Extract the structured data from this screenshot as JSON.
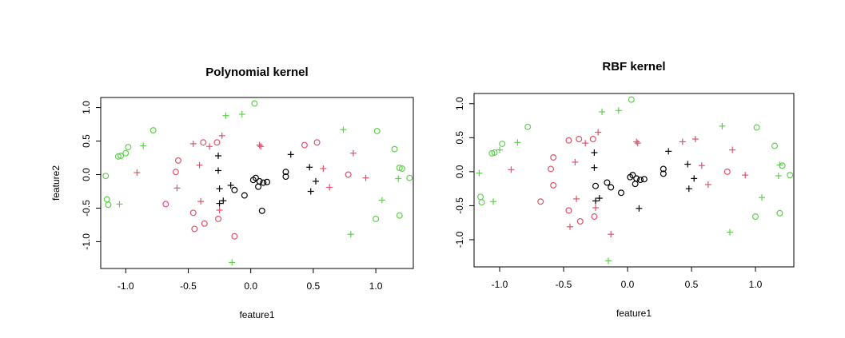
{
  "chart_data": [
    {
      "type": "scatter",
      "title": "Polynomial kernel",
      "xlabel": "feature1",
      "ylabel": "feature2",
      "xlim": [
        -1.2,
        1.3
      ],
      "ylim": [
        -1.4,
        1.15
      ],
      "x_ticks": [
        "-1.0",
        "-0.5",
        "0.0",
        "0.5",
        "1.0"
      ],
      "y_ticks": [
        "-1.0",
        "-0.5",
        "0.0",
        "0.5",
        "1.0"
      ],
      "marker_colors": {
        "black": "#000000",
        "red": "#DF536B",
        "green": "#61D04F"
      },
      "points": [
        {
          "x": 0.04,
          "y": -0.05,
          "color": "black",
          "marker": "o"
        },
        {
          "x": 0.02,
          "y": -0.08,
          "color": "black",
          "marker": "o"
        },
        {
          "x": 0.07,
          "y": -0.1,
          "color": "black",
          "marker": "o"
        },
        {
          "x": 0.1,
          "y": -0.12,
          "color": "black",
          "marker": "o"
        },
        {
          "x": 0.13,
          "y": -0.11,
          "color": "black",
          "marker": "o"
        },
        {
          "x": 0.06,
          "y": -0.18,
          "color": "black",
          "marker": "o"
        },
        {
          "x": -0.05,
          "y": -0.31,
          "color": "black",
          "marker": "o"
        },
        {
          "x": -0.13,
          "y": -0.23,
          "color": "black",
          "marker": "o"
        },
        {
          "x": 0.28,
          "y": 0.04,
          "color": "black",
          "marker": "o"
        },
        {
          "x": 0.28,
          "y": -0.03,
          "color": "black",
          "marker": "o"
        },
        {
          "x": 0.09,
          "y": -0.54,
          "color": "black",
          "marker": "o"
        },
        {
          "x": -0.26,
          "y": 0.28,
          "color": "black",
          "marker": "+"
        },
        {
          "x": -0.26,
          "y": 0.06,
          "color": "black",
          "marker": "+"
        },
        {
          "x": -0.25,
          "y": -0.21,
          "color": "black",
          "marker": "+"
        },
        {
          "x": -0.25,
          "y": -0.43,
          "color": "black",
          "marker": "+"
        },
        {
          "x": -0.22,
          "y": -0.39,
          "color": "black",
          "marker": "+"
        },
        {
          "x": -0.16,
          "y": -0.16,
          "color": "black",
          "marker": "+"
        },
        {
          "x": 0.32,
          "y": 0.3,
          "color": "black",
          "marker": "+"
        },
        {
          "x": 0.47,
          "y": 0.11,
          "color": "black",
          "marker": "+"
        },
        {
          "x": 0.52,
          "y": -0.1,
          "color": "black",
          "marker": "+"
        },
        {
          "x": 0.48,
          "y": -0.25,
          "color": "black",
          "marker": "+"
        },
        {
          "x": -0.68,
          "y": -0.44,
          "color": "red",
          "marker": "o"
        },
        {
          "x": -0.58,
          "y": 0.21,
          "color": "red",
          "marker": "o"
        },
        {
          "x": -0.6,
          "y": 0.04,
          "color": "red",
          "marker": "o"
        },
        {
          "x": -0.38,
          "y": 0.48,
          "color": "red",
          "marker": "o"
        },
        {
          "x": -0.46,
          "y": -0.57,
          "color": "red",
          "marker": "o"
        },
        {
          "x": -0.45,
          "y": -0.81,
          "color": "red",
          "marker": "o"
        },
        {
          "x": -0.37,
          "y": -0.73,
          "color": "red",
          "marker": "o"
        },
        {
          "x": -0.27,
          "y": 0.48,
          "color": "red",
          "marker": "o"
        },
        {
          "x": -0.26,
          "y": -0.66,
          "color": "red",
          "marker": "o"
        },
        {
          "x": -0.13,
          "y": -0.92,
          "color": "red",
          "marker": "o"
        },
        {
          "x": 0.43,
          "y": 0.44,
          "color": "red",
          "marker": "o"
        },
        {
          "x": 0.53,
          "y": 0.48,
          "color": "red",
          "marker": "o"
        },
        {
          "x": 0.78,
          "y": 0.0,
          "color": "red",
          "marker": "o"
        },
        {
          "x": -0.91,
          "y": 0.03,
          "color": "red",
          "marker": "+"
        },
        {
          "x": -0.59,
          "y": -0.2,
          "color": "red",
          "marker": "+"
        },
        {
          "x": -0.46,
          "y": 0.46,
          "color": "red",
          "marker": "+"
        },
        {
          "x": -0.41,
          "y": 0.14,
          "color": "red",
          "marker": "+"
        },
        {
          "x": -0.4,
          "y": -0.4,
          "color": "red",
          "marker": "+"
        },
        {
          "x": -0.33,
          "y": 0.42,
          "color": "red",
          "marker": "+"
        },
        {
          "x": -0.23,
          "y": 0.58,
          "color": "red",
          "marker": "+"
        },
        {
          "x": -0.25,
          "y": -0.53,
          "color": "red",
          "marker": "+"
        },
        {
          "x": 0.07,
          "y": 0.44,
          "color": "red",
          "marker": "+"
        },
        {
          "x": 0.08,
          "y": 0.42,
          "color": "red",
          "marker": "+"
        },
        {
          "x": 0.58,
          "y": 0.09,
          "color": "red",
          "marker": "+"
        },
        {
          "x": 0.63,
          "y": -0.19,
          "color": "red",
          "marker": "+"
        },
        {
          "x": 0.82,
          "y": 0.32,
          "color": "red",
          "marker": "+"
        },
        {
          "x": 0.92,
          "y": -0.05,
          "color": "red",
          "marker": "+"
        },
        {
          "x": -1.16,
          "y": -0.02,
          "color": "green",
          "marker": "o"
        },
        {
          "x": -1.15,
          "y": -0.37,
          "color": "green",
          "marker": "o"
        },
        {
          "x": -1.14,
          "y": -0.45,
          "color": "green",
          "marker": "o"
        },
        {
          "x": -1.06,
          "y": 0.27,
          "color": "green",
          "marker": "o"
        },
        {
          "x": -1.04,
          "y": 0.28,
          "color": "green",
          "marker": "o"
        },
        {
          "x": -1.0,
          "y": 0.32,
          "color": "green",
          "marker": "o"
        },
        {
          "x": -0.98,
          "y": 0.41,
          "color": "green",
          "marker": "o"
        },
        {
          "x": -0.78,
          "y": 0.66,
          "color": "green",
          "marker": "o"
        },
        {
          "x": 0.03,
          "y": 1.06,
          "color": "green",
          "marker": "o"
        },
        {
          "x": 1.01,
          "y": 0.65,
          "color": "green",
          "marker": "o"
        },
        {
          "x": 1.15,
          "y": 0.38,
          "color": "green",
          "marker": "o"
        },
        {
          "x": 1.19,
          "y": 0.1,
          "color": "green",
          "marker": "o"
        },
        {
          "x": 1.21,
          "y": 0.09,
          "color": "green",
          "marker": "o"
        },
        {
          "x": 1.27,
          "y": -0.05,
          "color": "green",
          "marker": "o"
        },
        {
          "x": 1.0,
          "y": -0.66,
          "color": "green",
          "marker": "o"
        },
        {
          "x": 1.19,
          "y": -0.61,
          "color": "green",
          "marker": "o"
        },
        {
          "x": -1.05,
          "y": -0.44,
          "color": "green",
          "marker": "+"
        },
        {
          "x": -0.86,
          "y": 0.43,
          "color": "green",
          "marker": "+"
        },
        {
          "x": -0.2,
          "y": 0.88,
          "color": "green",
          "marker": "+"
        },
        {
          "x": -0.07,
          "y": 0.9,
          "color": "green",
          "marker": "+"
        },
        {
          "x": -0.15,
          "y": -1.31,
          "color": "green",
          "marker": "+"
        },
        {
          "x": 0.74,
          "y": 0.67,
          "color": "green",
          "marker": "+"
        },
        {
          "x": 0.8,
          "y": -0.89,
          "color": "green",
          "marker": "+"
        },
        {
          "x": 1.05,
          "y": -0.38,
          "color": "green",
          "marker": "+"
        },
        {
          "x": 1.18,
          "y": -0.06,
          "color": "green",
          "marker": "+"
        }
      ]
    },
    {
      "type": "scatter",
      "title": "RBF kernel",
      "xlabel": "feature1",
      "ylabel": "",
      "xlim": [
        -1.2,
        1.3
      ],
      "ylim": [
        -1.4,
        1.15
      ],
      "x_ticks": [
        "-1.0",
        "-0.5",
        "0.0",
        "0.5",
        "1.0"
      ],
      "y_ticks": [
        "-1.0",
        "-0.5",
        "0.0",
        "0.5",
        "1.0"
      ],
      "marker_colors": {
        "black": "#000000",
        "red": "#DF536B",
        "green": "#61D04F"
      },
      "points": [
        {
          "x": 0.04,
          "y": -0.05,
          "color": "black",
          "marker": "o"
        },
        {
          "x": 0.02,
          "y": -0.08,
          "color": "black",
          "marker": "o"
        },
        {
          "x": 0.07,
          "y": -0.1,
          "color": "black",
          "marker": "o"
        },
        {
          "x": 0.1,
          "y": -0.12,
          "color": "black",
          "marker": "o"
        },
        {
          "x": 0.13,
          "y": -0.11,
          "color": "black",
          "marker": "o"
        },
        {
          "x": 0.06,
          "y": -0.18,
          "color": "black",
          "marker": "o"
        },
        {
          "x": -0.05,
          "y": -0.31,
          "color": "black",
          "marker": "o"
        },
        {
          "x": -0.13,
          "y": -0.23,
          "color": "black",
          "marker": "o"
        },
        {
          "x": -0.16,
          "y": -0.16,
          "color": "black",
          "marker": "o"
        },
        {
          "x": -0.25,
          "y": -0.21,
          "color": "black",
          "marker": "o"
        },
        {
          "x": 0.28,
          "y": 0.04,
          "color": "black",
          "marker": "o"
        },
        {
          "x": 0.28,
          "y": -0.03,
          "color": "black",
          "marker": "o"
        },
        {
          "x": -0.26,
          "y": 0.28,
          "color": "black",
          "marker": "+"
        },
        {
          "x": -0.26,
          "y": 0.06,
          "color": "black",
          "marker": "+"
        },
        {
          "x": -0.25,
          "y": -0.43,
          "color": "black",
          "marker": "+"
        },
        {
          "x": -0.22,
          "y": -0.39,
          "color": "black",
          "marker": "+"
        },
        {
          "x": 0.09,
          "y": -0.54,
          "color": "black",
          "marker": "+"
        },
        {
          "x": 0.32,
          "y": 0.3,
          "color": "black",
          "marker": "+"
        },
        {
          "x": 0.47,
          "y": 0.11,
          "color": "black",
          "marker": "+"
        },
        {
          "x": 0.52,
          "y": -0.1,
          "color": "black",
          "marker": "+"
        },
        {
          "x": 0.48,
          "y": -0.25,
          "color": "black",
          "marker": "+"
        },
        {
          "x": -0.68,
          "y": -0.44,
          "color": "red",
          "marker": "o"
        },
        {
          "x": -0.58,
          "y": 0.21,
          "color": "red",
          "marker": "o"
        },
        {
          "x": -0.6,
          "y": 0.04,
          "color": "red",
          "marker": "o"
        },
        {
          "x": -0.58,
          "y": -0.2,
          "color": "red",
          "marker": "o"
        },
        {
          "x": -0.46,
          "y": 0.46,
          "color": "red",
          "marker": "o"
        },
        {
          "x": -0.38,
          "y": 0.48,
          "color": "red",
          "marker": "o"
        },
        {
          "x": -0.46,
          "y": -0.57,
          "color": "red",
          "marker": "o"
        },
        {
          "x": -0.37,
          "y": -0.73,
          "color": "red",
          "marker": "o"
        },
        {
          "x": -0.26,
          "y": -0.66,
          "color": "red",
          "marker": "o"
        },
        {
          "x": -0.27,
          "y": 0.48,
          "color": "red",
          "marker": "o"
        },
        {
          "x": 0.78,
          "y": 0.0,
          "color": "red",
          "marker": "o"
        },
        {
          "x": -0.91,
          "y": 0.03,
          "color": "red",
          "marker": "+"
        },
        {
          "x": -0.45,
          "y": -0.81,
          "color": "red",
          "marker": "+"
        },
        {
          "x": -0.41,
          "y": 0.14,
          "color": "red",
          "marker": "+"
        },
        {
          "x": -0.4,
          "y": -0.4,
          "color": "red",
          "marker": "+"
        },
        {
          "x": -0.33,
          "y": 0.42,
          "color": "red",
          "marker": "+"
        },
        {
          "x": -0.23,
          "y": 0.58,
          "color": "red",
          "marker": "+"
        },
        {
          "x": -0.25,
          "y": -0.53,
          "color": "red",
          "marker": "+"
        },
        {
          "x": -0.13,
          "y": -0.92,
          "color": "red",
          "marker": "+"
        },
        {
          "x": 0.07,
          "y": 0.44,
          "color": "red",
          "marker": "+"
        },
        {
          "x": 0.08,
          "y": 0.42,
          "color": "red",
          "marker": "+"
        },
        {
          "x": 0.43,
          "y": 0.44,
          "color": "red",
          "marker": "+"
        },
        {
          "x": 0.53,
          "y": 0.48,
          "color": "red",
          "marker": "+"
        },
        {
          "x": 0.58,
          "y": 0.09,
          "color": "red",
          "marker": "+"
        },
        {
          "x": 0.63,
          "y": -0.19,
          "color": "red",
          "marker": "+"
        },
        {
          "x": 0.82,
          "y": 0.32,
          "color": "red",
          "marker": "+"
        },
        {
          "x": 0.92,
          "y": -0.05,
          "color": "red",
          "marker": "+"
        },
        {
          "x": -1.15,
          "y": -0.37,
          "color": "green",
          "marker": "o"
        },
        {
          "x": -1.14,
          "y": -0.45,
          "color": "green",
          "marker": "o"
        },
        {
          "x": -1.06,
          "y": 0.27,
          "color": "green",
          "marker": "o"
        },
        {
          "x": -1.04,
          "y": 0.28,
          "color": "green",
          "marker": "o"
        },
        {
          "x": -0.98,
          "y": 0.41,
          "color": "green",
          "marker": "o"
        },
        {
          "x": -0.78,
          "y": 0.66,
          "color": "green",
          "marker": "o"
        },
        {
          "x": 0.03,
          "y": 1.06,
          "color": "green",
          "marker": "o"
        },
        {
          "x": 1.01,
          "y": 0.65,
          "color": "green",
          "marker": "o"
        },
        {
          "x": 1.15,
          "y": 0.38,
          "color": "green",
          "marker": "o"
        },
        {
          "x": 1.21,
          "y": 0.09,
          "color": "green",
          "marker": "o"
        },
        {
          "x": 1.27,
          "y": -0.05,
          "color": "green",
          "marker": "o"
        },
        {
          "x": 1.0,
          "y": -0.66,
          "color": "green",
          "marker": "o"
        },
        {
          "x": 1.19,
          "y": -0.61,
          "color": "green",
          "marker": "o"
        },
        {
          "x": -1.16,
          "y": -0.02,
          "color": "green",
          "marker": "+"
        },
        {
          "x": -1.05,
          "y": -0.44,
          "color": "green",
          "marker": "+"
        },
        {
          "x": -1.0,
          "y": 0.32,
          "color": "green",
          "marker": "+"
        },
        {
          "x": -0.86,
          "y": 0.43,
          "color": "green",
          "marker": "+"
        },
        {
          "x": -0.2,
          "y": 0.88,
          "color": "green",
          "marker": "+"
        },
        {
          "x": -0.07,
          "y": 0.9,
          "color": "green",
          "marker": "+"
        },
        {
          "x": -0.15,
          "y": -1.31,
          "color": "green",
          "marker": "+"
        },
        {
          "x": 0.74,
          "y": 0.67,
          "color": "green",
          "marker": "+"
        },
        {
          "x": 0.8,
          "y": -0.89,
          "color": "green",
          "marker": "+"
        },
        {
          "x": 1.05,
          "y": -0.38,
          "color": "green",
          "marker": "+"
        },
        {
          "x": 1.18,
          "y": -0.06,
          "color": "green",
          "marker": "+"
        },
        {
          "x": 1.19,
          "y": 0.1,
          "color": "green",
          "marker": "+"
        }
      ]
    }
  ]
}
